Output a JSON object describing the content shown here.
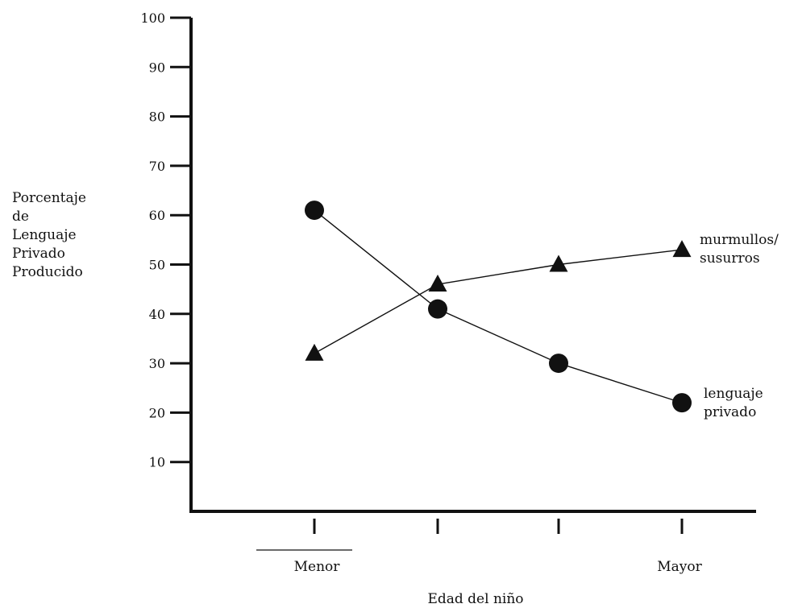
{
  "chart_data": {
    "type": "line",
    "title": "",
    "ylabel": [
      "Porcentaje",
      "de",
      "Lenguaje",
      "Privado",
      "Producido"
    ],
    "xlabel": "Edad del niño",
    "ylim": [
      0,
      100
    ],
    "yticks": [
      10,
      20,
      30,
      40,
      50,
      60,
      70,
      80,
      90,
      100
    ],
    "x": [
      1,
      2,
      3,
      4
    ],
    "x_tick_labels": [
      "Menor",
      "",
      "",
      "Mayor"
    ],
    "grid": false,
    "series": [
      {
        "name": [
          "murmullos/",
          "susurros"
        ],
        "marker": "triangle",
        "values": [
          32,
          46,
          50,
          53
        ]
      },
      {
        "name": [
          "lenguaje",
          "privado"
        ],
        "marker": "circle",
        "values": [
          61,
          41,
          30,
          22
        ]
      }
    ]
  },
  "colors": {
    "ink": "#111111",
    "background": "#ffffff"
  }
}
